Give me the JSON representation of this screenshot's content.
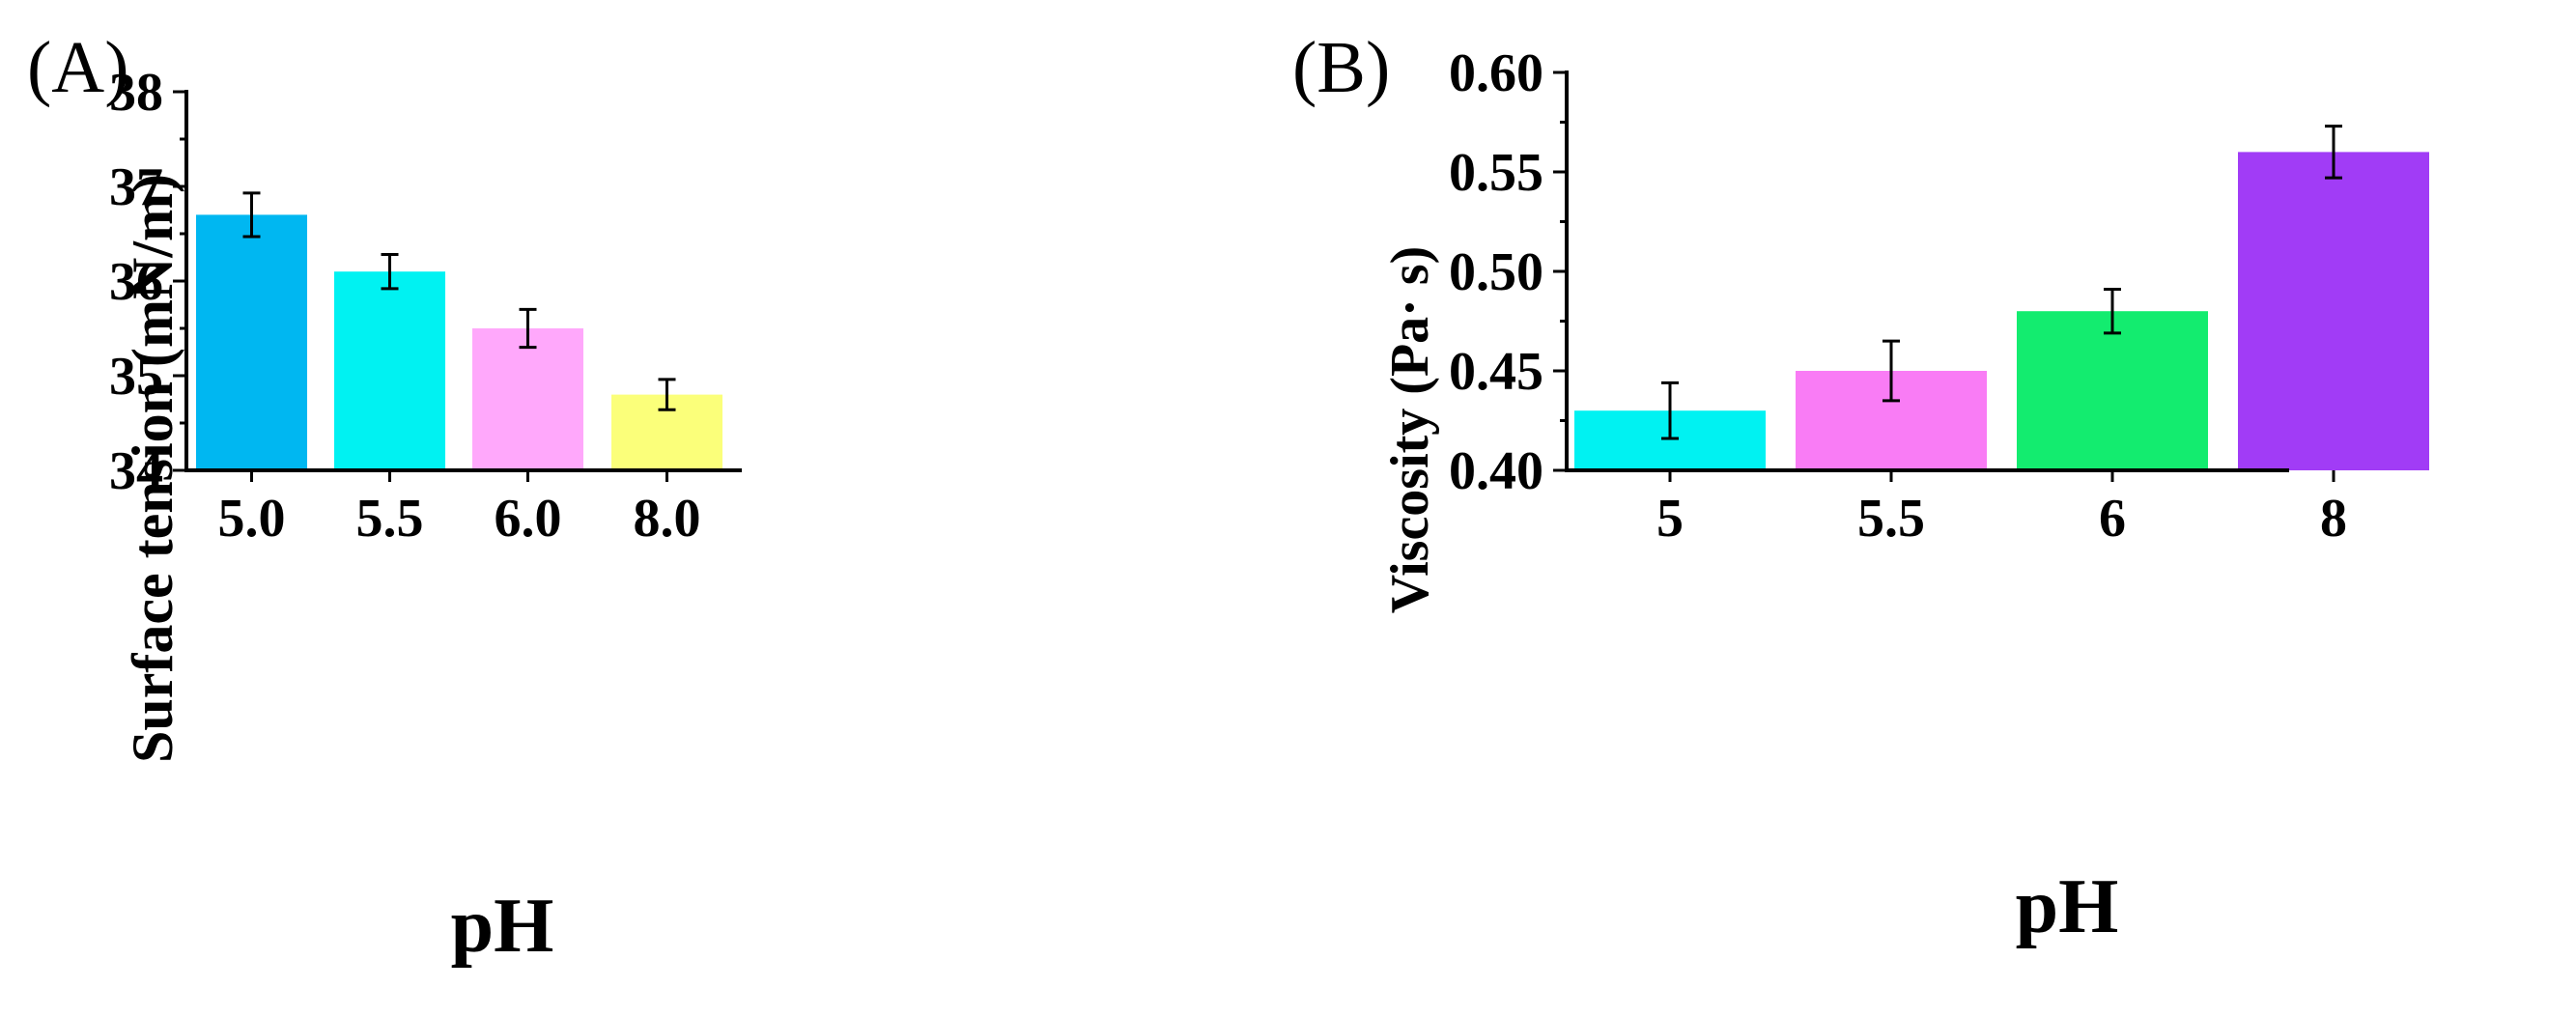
{
  "chart_data": [
    {
      "panel_label": "(A)",
      "type": "bar",
      "categories": [
        "5.0",
        "5.5",
        "6.0",
        "8.0"
      ],
      "values": [
        36.7,
        36.1,
        35.5,
        34.8
      ],
      "errors": [
        0.23,
        0.18,
        0.2,
        0.16
      ],
      "colors": [
        "#00b7f1",
        "#00f2f2",
        "#ffa8fb",
        "#fbff7a"
      ],
      "title": "",
      "xlabel": "pH",
      "ylabel": "Surface tension (mN/m)",
      "ylim": [
        34,
        38
      ],
      "yticks": [
        "34",
        "35",
        "36",
        "37",
        "38"
      ],
      "grid": false,
      "legend": "none"
    },
    {
      "panel_label": "(B)",
      "type": "bar",
      "categories": [
        "5",
        "5.5",
        "6",
        "8"
      ],
      "values": [
        0.43,
        0.45,
        0.48,
        0.56
      ],
      "errors": [
        0.014,
        0.015,
        0.011,
        0.013
      ],
      "colors": [
        "#00f2f2",
        "#f97cf5",
        "#13ec6f",
        "#a13cf6"
      ],
      "title": "",
      "xlabel": "pH",
      "ylabel": "Viscosity (Pa· s)",
      "ylim": [
        0.4,
        0.6
      ],
      "yticks": [
        "0.40",
        "0.45",
        "0.50",
        "0.55",
        "0.60"
      ],
      "grid": false,
      "legend": "none"
    }
  ]
}
